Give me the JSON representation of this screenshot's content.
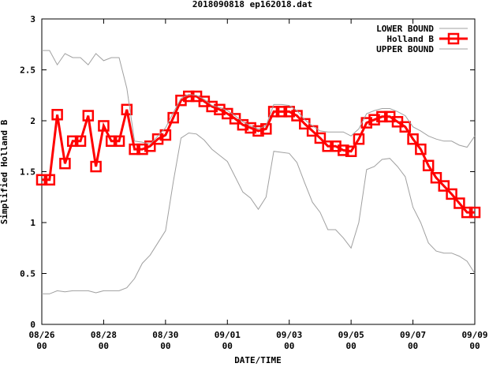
{
  "chart_data": {
    "type": "line",
    "title": "2018090818 ep162018.dat",
    "xlabel": "DATE/TIME",
    "ylabel": "Simplified Holland B",
    "x_range_hours": [
      0,
      336
    ],
    "ylim": [
      0,
      3
    ],
    "y_ticks": [
      0,
      0.5,
      1,
      1.5,
      2,
      2.5,
      3
    ],
    "y_tick_labels": [
      "0",
      "0.5",
      "1",
      "1.5",
      "2",
      "2.5",
      "3"
    ],
    "x_ticks": [
      {
        "hour": 0,
        "date": "08/26",
        "time": "00"
      },
      {
        "hour": 48,
        "date": "08/28",
        "time": "00"
      },
      {
        "hour": 96,
        "date": "08/30",
        "time": "00"
      },
      {
        "hour": 144,
        "date": "09/01",
        "time": "00"
      },
      {
        "hour": 192,
        "date": "09/03",
        "time": "00"
      },
      {
        "hour": 240,
        "date": "09/05",
        "time": "00"
      },
      {
        "hour": 288,
        "date": "09/07",
        "time": "00"
      },
      {
        "hour": 336,
        "date": "09/09",
        "time": "00"
      }
    ],
    "grid": false,
    "legend_position": "top-right",
    "series": [
      {
        "name": "LOWER BOUND",
        "color": "#a0a0a0",
        "marker": "none",
        "x": [
          0,
          6,
          12,
          18,
          24,
          30,
          36,
          42,
          48,
          54,
          60,
          66,
          72,
          78,
          84,
          90,
          96,
          102,
          108,
          114,
          120,
          126,
          132,
          138,
          144,
          150,
          156,
          162,
          168,
          174,
          180,
          186,
          192,
          198,
          204,
          210,
          216,
          222,
          228,
          234,
          240,
          246,
          252,
          258,
          264,
          270,
          276,
          282,
          288,
          294,
          300,
          306,
          312,
          318,
          324,
          330,
          336
        ],
        "values": [
          0.3,
          0.3,
          0.33,
          0.32,
          0.33,
          0.33,
          0.33,
          0.31,
          0.33,
          0.33,
          0.33,
          0.36,
          0.45,
          0.6,
          0.68,
          0.8,
          0.92,
          1.4,
          1.83,
          1.88,
          1.87,
          1.81,
          1.72,
          1.66,
          1.6,
          1.45,
          1.3,
          1.24,
          1.13,
          1.25,
          1.7,
          1.69,
          1.68,
          1.59,
          1.39,
          1.2,
          1.1,
          0.93,
          0.93,
          0.85,
          0.75,
          1.0,
          1.52,
          1.55,
          1.62,
          1.63,
          1.55,
          1.45,
          1.15,
          1.0,
          0.8,
          0.72,
          0.7,
          0.7,
          0.67,
          0.62,
          0.5
        ]
      },
      {
        "name": "Holland B",
        "color": "#ff0000",
        "marker": "square",
        "x": [
          0,
          6,
          12,
          18,
          24,
          30,
          36,
          42,
          48,
          54,
          60,
          66,
          72,
          78,
          84,
          90,
          96,
          102,
          108,
          114,
          120,
          126,
          132,
          138,
          144,
          150,
          156,
          162,
          168,
          174,
          180,
          186,
          192,
          198,
          204,
          210,
          216,
          222,
          228,
          234,
          240,
          246,
          252,
          258,
          264,
          270,
          276,
          282,
          288,
          294,
          300,
          306,
          312,
          318,
          324,
          330,
          336
        ],
        "values": [
          1.42,
          1.42,
          2.06,
          1.58,
          1.8,
          1.8,
          2.05,
          1.55,
          1.95,
          1.8,
          1.8,
          2.11,
          1.72,
          1.72,
          1.75,
          1.82,
          1.86,
          2.03,
          2.2,
          2.24,
          2.24,
          2.19,
          2.14,
          2.11,
          2.07,
          2.02,
          1.96,
          1.93,
          1.9,
          1.92,
          2.09,
          2.09,
          2.09,
          2.05,
          1.97,
          1.9,
          1.83,
          1.75,
          1.75,
          1.71,
          1.7,
          1.82,
          1.98,
          2.01,
          2.04,
          2.04,
          1.99,
          1.94,
          1.82,
          1.72,
          1.56,
          1.44,
          1.36,
          1.28,
          1.19,
          1.1,
          1.1
        ]
      },
      {
        "name": "UPPER BOUND",
        "color": "#a0a0a0",
        "marker": "none",
        "x": [
          0,
          6,
          12,
          18,
          24,
          30,
          36,
          42,
          48,
          54,
          60,
          66,
          72,
          78,
          84,
          90,
          96,
          102,
          108,
          114,
          120,
          126,
          132,
          138,
          144,
          150,
          156,
          162,
          168,
          174,
          180,
          186,
          192,
          198,
          204,
          210,
          216,
          222,
          228,
          234,
          240,
          246,
          252,
          258,
          264,
          270,
          276,
          282,
          288,
          294,
          300,
          306,
          312,
          318,
          324,
          330,
          336
        ],
        "values": [
          2.69,
          2.69,
          2.55,
          2.66,
          2.62,
          2.62,
          2.55,
          2.66,
          2.59,
          2.62,
          2.62,
          2.32,
          1.8,
          1.79,
          1.77,
          1.85,
          1.93,
          2.08,
          2.22,
          2.26,
          2.25,
          2.21,
          2.15,
          2.13,
          2.1,
          2.05,
          1.99,
          1.95,
          1.92,
          1.95,
          2.16,
          2.16,
          2.15,
          2.1,
          2.01,
          1.95,
          1.9,
          1.89,
          1.89,
          1.89,
          1.85,
          1.92,
          2.07,
          2.1,
          2.12,
          2.12,
          2.09,
          2.05,
          1.94,
          1.9,
          1.85,
          1.82,
          1.8,
          1.8,
          1.76,
          1.74,
          1.85
        ]
      }
    ]
  }
}
